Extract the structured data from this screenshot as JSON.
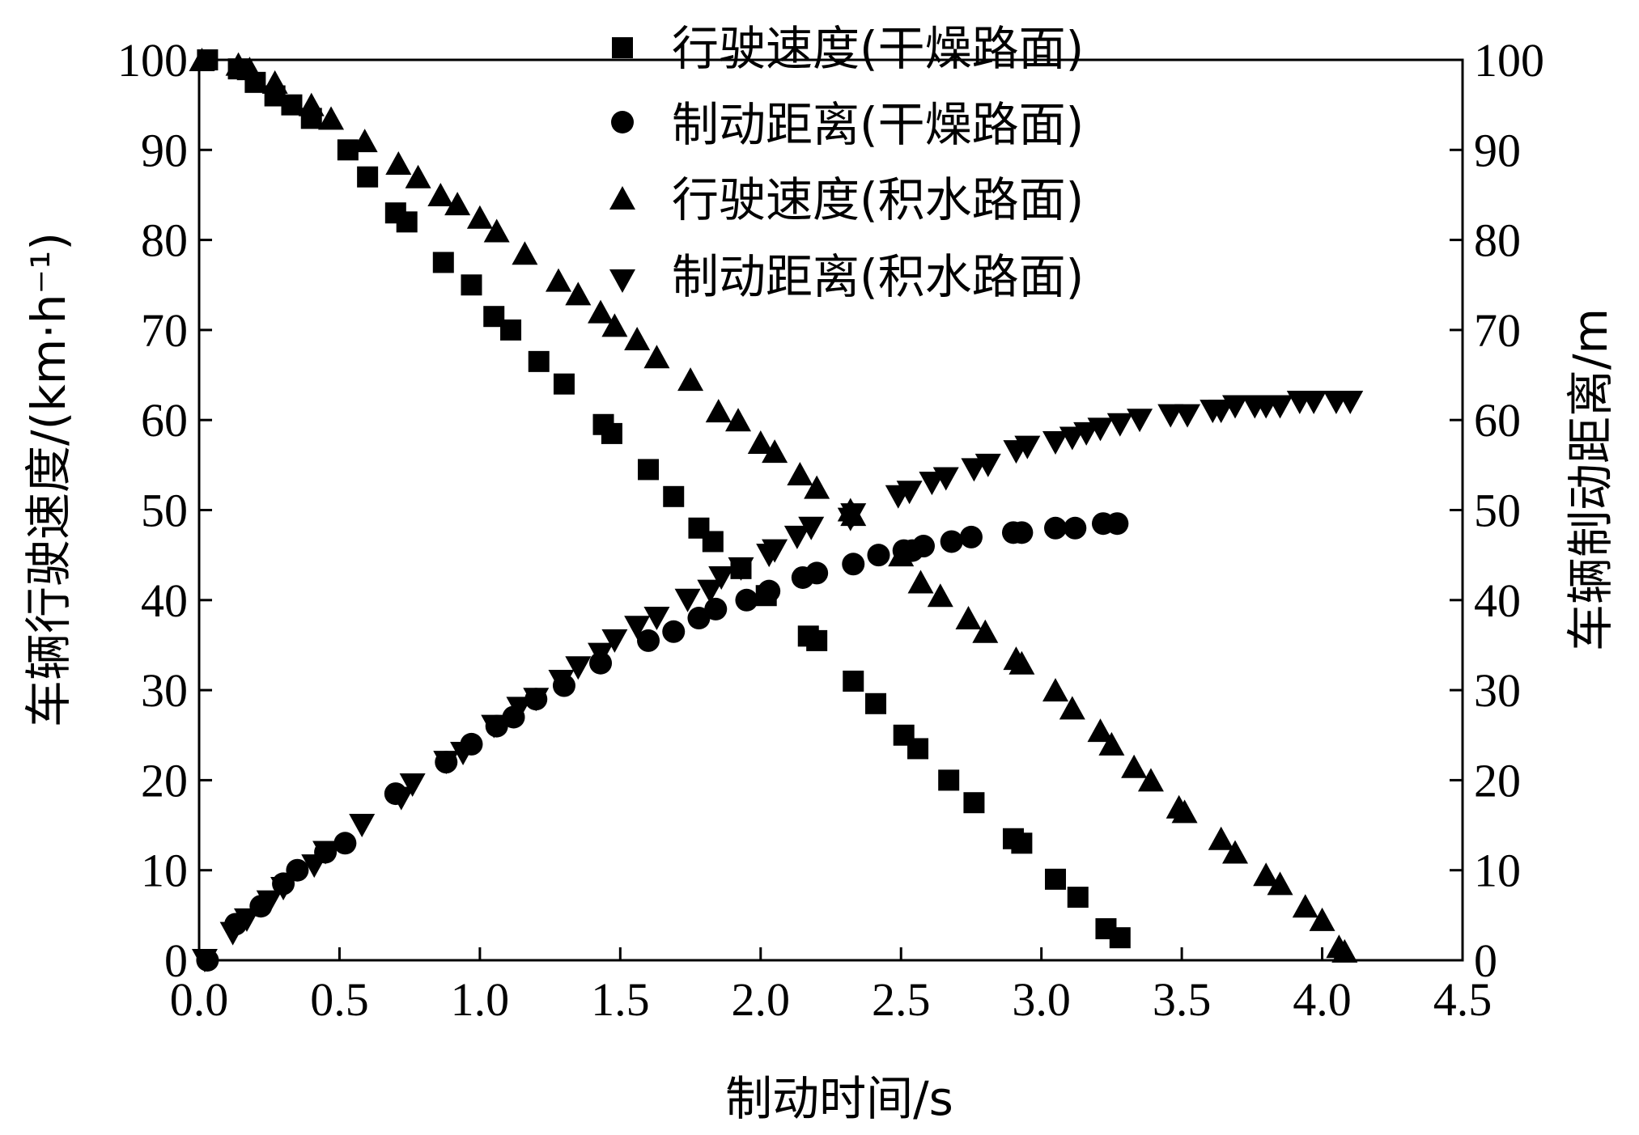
{
  "chart_data": {
    "type": "scatter",
    "title": "",
    "xlabel": "制动时间/s",
    "ylabel_left": "车辆行驶速度/(km·h⁻¹)",
    "ylabel_right": "车辆制动距离/m",
    "xlim": [
      0,
      4.5
    ],
    "ylim_left": [
      0,
      100
    ],
    "ylim_right": [
      0,
      100
    ],
    "x_ticks": [
      "0.0",
      "0.5",
      "1.0",
      "1.5",
      "2.0",
      "2.5",
      "3.0",
      "3.5",
      "4.0",
      "4.5"
    ],
    "y_ticks_left": [
      "0",
      "10",
      "20",
      "30",
      "40",
      "50",
      "60",
      "70",
      "80",
      "90",
      "100"
    ],
    "y_ticks_right": [
      "0",
      "10",
      "20",
      "30",
      "40",
      "50",
      "60",
      "70",
      "80",
      "90",
      "100"
    ],
    "grid": false,
    "legend_position": "top-center",
    "series": [
      {
        "name": "行驶速度(干燥路面)",
        "marker": "square",
        "axis": "left",
        "x": [
          0.03,
          0.14,
          0.2,
          0.27,
          0.33,
          0.4,
          0.53,
          0.6,
          0.7,
          0.74,
          0.87,
          0.97,
          1.05,
          1.11,
          1.21,
          1.3,
          1.44,
          1.47,
          1.6,
          1.69,
          1.78,
          1.83,
          1.93,
          2.02,
          2.17,
          2.2,
          2.33,
          2.41,
          2.51,
          2.56,
          2.67,
          2.76,
          2.9,
          2.93,
          3.05,
          3.13,
          3.23,
          3.28
        ],
        "y": [
          100,
          99,
          97.5,
          96,
          95,
          93.5,
          90,
          87,
          83,
          82,
          77.5,
          75,
          71.5,
          70,
          66.5,
          64,
          59.5,
          58.5,
          54.5,
          51.5,
          48,
          46.5,
          43.5,
          40.5,
          36,
          35.5,
          31,
          28.5,
          25,
          23.5,
          20,
          17.5,
          13.5,
          13,
          9,
          7,
          3.5,
          2.5
        ]
      },
      {
        "name": "制动距离(干燥路面)",
        "marker": "circle",
        "axis": "right",
        "x": [
          0.03,
          0.13,
          0.22,
          0.3,
          0.35,
          0.45,
          0.52,
          0.7,
          0.88,
          0.97,
          1.06,
          1.12,
          1.2,
          1.3,
          1.43,
          1.6,
          1.69,
          1.78,
          1.84,
          1.95,
          2.03,
          2.15,
          2.2,
          2.33,
          2.42,
          2.51,
          2.54,
          2.58,
          2.68,
          2.75,
          2.9,
          2.93,
          3.05,
          3.12,
          3.22,
          3.27
        ],
        "y": [
          0,
          4,
          6,
          8.5,
          10,
          12,
          13,
          18.5,
          22,
          24,
          26,
          27,
          29,
          30.5,
          33,
          35.5,
          36.5,
          38,
          39,
          40,
          41,
          42.5,
          43,
          44,
          45,
          45.5,
          45.5,
          46,
          46.5,
          47,
          47.5,
          47.5,
          48,
          48,
          48.5,
          48.5
        ]
      },
      {
        "name": "行驶速度(积水路面)",
        "marker": "triangle-up",
        "axis": "left",
        "x": [
          0.01,
          0.14,
          0.18,
          0.27,
          0.4,
          0.47,
          0.59,
          0.71,
          0.78,
          0.86,
          0.92,
          1.0,
          1.06,
          1.16,
          1.28,
          1.35,
          1.43,
          1.48,
          1.56,
          1.63,
          1.75,
          1.85,
          1.92,
          2.0,
          2.05,
          2.14,
          2.2,
          2.32,
          2.33,
          2.5,
          2.57,
          2.64,
          2.74,
          2.8,
          2.91,
          2.93,
          3.05,
          3.11,
          3.21,
          3.25,
          3.33,
          3.39,
          3.49,
          3.51,
          3.64,
          3.69,
          3.8,
          3.85,
          3.94,
          4.0,
          4.06,
          4.08
        ],
        "y": [
          100,
          99.5,
          99,
          97.5,
          95,
          93.5,
          91,
          88.5,
          87,
          85,
          84,
          82.5,
          81,
          78.5,
          75.5,
          74,
          72,
          70.5,
          69,
          67,
          64.5,
          61,
          60,
          57.5,
          56.5,
          54,
          52.5,
          50,
          49.5,
          45,
          42,
          40.5,
          38,
          36.5,
          33.5,
          33,
          30,
          28,
          25.5,
          24,
          21.5,
          20,
          17,
          16.5,
          13.5,
          12,
          9.5,
          8.5,
          6,
          4.5,
          1.5,
          1
        ]
      },
      {
        "name": "制动距离(积水路面)",
        "marker": "triangle-down",
        "axis": "right",
        "x": [
          0.02,
          0.12,
          0.17,
          0.25,
          0.3,
          0.41,
          0.45,
          0.58,
          0.72,
          0.76,
          0.88,
          0.94,
          1.05,
          1.14,
          1.2,
          1.29,
          1.35,
          1.43,
          1.48,
          1.56,
          1.63,
          1.74,
          1.82,
          1.86,
          1.93,
          2.03,
          2.05,
          2.13,
          2.18,
          2.32,
          2.33,
          2.49,
          2.53,
          2.61,
          2.66,
          2.76,
          2.81,
          2.91,
          2.95,
          3.05,
          3.11,
          3.16,
          3.21,
          3.28,
          3.35,
          3.46,
          3.52,
          3.61,
          3.64,
          3.69,
          3.76,
          3.8,
          3.85,
          3.92,
          3.97,
          4.05,
          4.1
        ],
        "y": [
          0,
          3,
          4.5,
          6.5,
          8,
          10.5,
          12,
          15,
          18,
          19.5,
          22,
          23,
          26,
          28,
          29,
          31,
          32.5,
          34,
          35.5,
          37,
          38,
          40,
          41,
          42.5,
          43.5,
          45,
          45.5,
          47,
          48,
          49,
          49.5,
          51.5,
          52,
          53,
          53.5,
          54.5,
          55,
          56.5,
          57,
          57.5,
          58,
          58.5,
          59,
          59.5,
          60,
          60.5,
          60.5,
          61,
          61,
          61.5,
          61.5,
          61.5,
          61.5,
          62,
          62,
          62,
          62
        ]
      }
    ]
  }
}
